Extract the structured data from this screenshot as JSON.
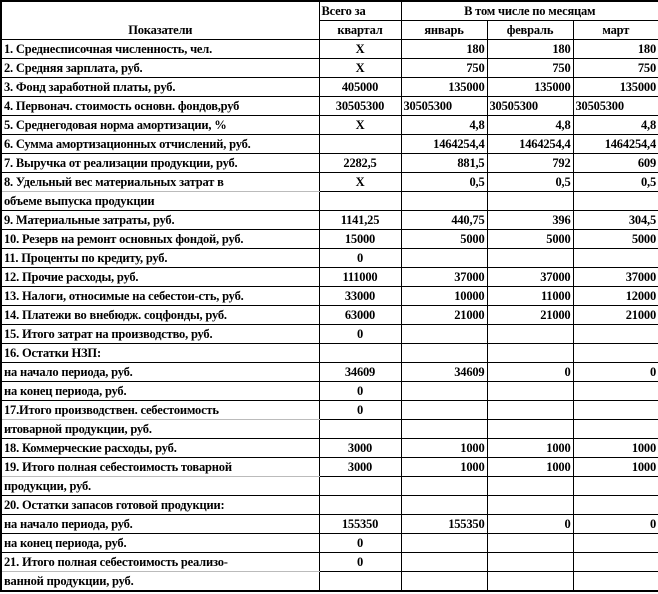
{
  "header": {
    "indicators": "Показатели",
    "total_line1": "Всего за",
    "total_line2": "квартал",
    "months_group": "В том числе по месяцам",
    "months": [
      "январь",
      "февраль",
      "март"
    ]
  },
  "rows": [
    {
      "label": "1. Среднесписочная численность, чел.",
      "total": "X",
      "m": [
        "180",
        "180",
        "180"
      ]
    },
    {
      "label": "2. Средняя зарплата, руб.",
      "total": "X",
      "m": [
        "750",
        "750",
        "750"
      ]
    },
    {
      "label": "3. Фонд заработной платы, руб.",
      "total": "405000",
      "m": [
        "135000",
        "135000",
        "135000"
      ]
    },
    {
      "label": "4. Первонач. стоимость основн. фондов,руб",
      "total": "30505300",
      "m": [
        "30505300",
        "30505300",
        "30505300"
      ],
      "left": true
    },
    {
      "label": "5. Среднегодовая норма амортизации, %",
      "total": "X",
      "m": [
        "4,8",
        "4,8",
        "4,8"
      ]
    },
    {
      "label": "6. Сумма амортизационных отчислений, руб.",
      "total": "",
      "m": [
        "1464254,4",
        "1464254,4",
        "1464254,4"
      ]
    },
    {
      "label": "7. Выручка от реализации продукции, руб.",
      "total": "2282,5",
      "m": [
        "881,5",
        "792",
        "609"
      ]
    },
    {
      "label": "8. Удельный вес материальных затрат в",
      "total": "X",
      "m": [
        "0,5",
        "0,5",
        "0,5"
      ],
      "first": true
    },
    {
      "label": "объеме выпуска продукции",
      "total": "",
      "m": [
        "",
        "",
        ""
      ],
      "cont": true
    },
    {
      "label": "9. Материальные затраты, руб.",
      "total": "1141,25",
      "m": [
        "440,75",
        "396",
        "304,5"
      ]
    },
    {
      "label": "10. Резерв на ремонт основных фондой, руб.",
      "total": "15000",
      "m": [
        "5000",
        "5000",
        "5000"
      ]
    },
    {
      "label": "11. Проценты по кредиту, руб.",
      "total": "0",
      "m": [
        "",
        "",
        ""
      ]
    },
    {
      "label": "12. Прочие расходы, руб.",
      "total": "111000",
      "m": [
        "37000",
        "37000",
        "37000"
      ]
    },
    {
      "label": "13. Налоги, относимые на себестои-сть, руб.",
      "total": "33000",
      "m": [
        "10000",
        "11000",
        "12000"
      ]
    },
    {
      "label": "14. Платежи во внебюдж. соцфонды, руб.",
      "total": "63000",
      "m": [
        "21000",
        "21000",
        "21000"
      ]
    },
    {
      "label": "15. Итого затрат на производство, руб.",
      "total": "0",
      "m": [
        "",
        "",
        ""
      ]
    },
    {
      "label": "16. Остатки НЗП:",
      "total": "",
      "m": [
        "",
        "",
        ""
      ]
    },
    {
      "label": "на начало периода, руб.",
      "total": "34609",
      "m": [
        "34609",
        "0",
        "0"
      ]
    },
    {
      "label": "на конец периода, руб.",
      "total": "0",
      "m": [
        "",
        "",
        ""
      ]
    },
    {
      "label": "17.Итого производствен. себестоимость",
      "total": "0",
      "m": [
        "",
        "",
        ""
      ],
      "first": true
    },
    {
      "label": "итоварной продукции, руб.",
      "total": "",
      "m": [
        "",
        "",
        ""
      ],
      "cont": true
    },
    {
      "label": "18. Коммерческие расходы, руб.",
      "total": "3000",
      "m": [
        "1000",
        "1000",
        "1000"
      ]
    },
    {
      "label": "19. Итого полная себестоимость товарной",
      "total": "3000",
      "m": [
        "1000",
        "1000",
        "1000"
      ],
      "first": true
    },
    {
      "label": "продукции, руб.",
      "total": "",
      "m": [
        "",
        "",
        ""
      ],
      "cont": true
    },
    {
      "label": "20. Остатки запасов готовой продукции:",
      "total": "",
      "m": [
        "",
        "",
        ""
      ]
    },
    {
      "label": "на начало периода, руб.",
      "total": "155350",
      "m": [
        "155350",
        "0",
        "0"
      ]
    },
    {
      "label": "на конец периода, руб.",
      "total": "0",
      "m": [
        "",
        "",
        ""
      ]
    },
    {
      "label": "21. Итого полная себестоимость реализо-",
      "total": "0",
      "m": [
        "",
        "",
        ""
      ],
      "first": true
    },
    {
      "label": "ванной продукции, руб.",
      "total": "",
      "m": [
        "",
        "",
        ""
      ],
      "cont": true
    }
  ]
}
